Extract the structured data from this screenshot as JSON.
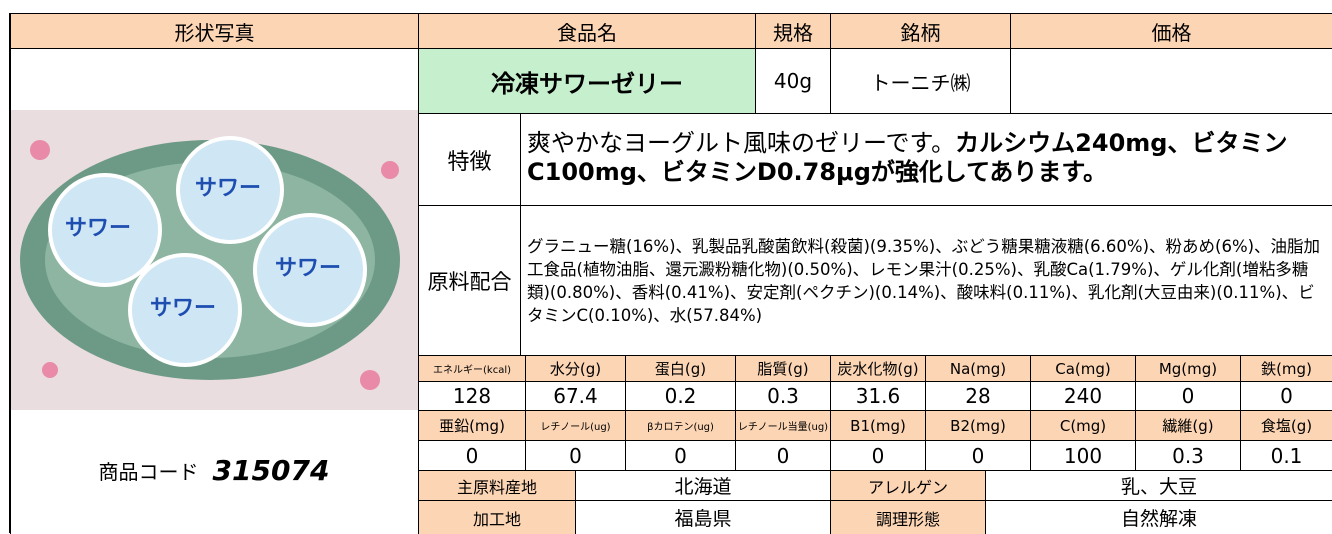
{
  "header": [
    "形状写真",
    "食品名",
    "規格",
    "銘柄",
    "価格"
  ],
  "product": {
    "name": "冷凍サワーゼリー",
    "spec": "40g",
    "brand": "トーニチ㈱"
  },
  "product_code": {
    "label": "商品コード",
    "code": "315074"
  },
  "features": {
    "label": "特徴",
    "text": "爽やかなヨーグルト風味のゼリーです。",
    "text_bold": "カルシウム240mg、ビタミンC100mg、ビタミンD0.78μgが強化してあります。"
  },
  "ingredients": {
    "label": "原料配合",
    "text": "グラニュー糖(16%)、乳製品乳酸菌飲料(殺菌)(9.35%)、ぶどう糖果糖液糖(6.60%)、粉あめ(6%)、油脂加工食品(植物油脂、還元澱粉糖化物)(0.50%)、レモン果汁(0.25%)、乳酸Ca(1.79%)、ゲル化剤(増粘多糖類)(0.80%)、香料(0.41%)、安定剤(ペクチン)(0.14%)、酸味料(0.11%)、乳化剤(大豆由来)(0.11%)、ビタミンC(0.10%)、水(57.84%)"
  },
  "nutrition": [
    {
      "headers": [
        "エネルギー(kcal)",
        "水分(g)",
        "蛋白(g)",
        "脂質(g)",
        "炭水化物(g)",
        "Na(mg)",
        "Ca(mg)",
        "Mg(mg)",
        "鉄(mg)"
      ],
      "values": [
        128,
        67.4,
        0.2,
        0.3,
        31.6,
        28,
        240,
        0,
        0
      ]
    },
    {
      "headers": [
        "亜鉛(mg)",
        "レチノール(ug)",
        "βカロテン(ug)",
        "レチノール当量(ug)",
        "B1(mg)",
        "B2(mg)",
        "C(mg)",
        "繊維(g)",
        "食塩(g)"
      ],
      "values": [
        0,
        0,
        0,
        0,
        0,
        0,
        100,
        0.3,
        0.1
      ]
    }
  ],
  "origin": {
    "label": "主原料産地",
    "value": "北海道",
    "allergen_label": "アレルゲン",
    "allergen": "乳、大豆"
  },
  "processing": {
    "label": "加工地",
    "value": "福島県",
    "method_label": "調理形態",
    "method": "自然解凍"
  }
}
